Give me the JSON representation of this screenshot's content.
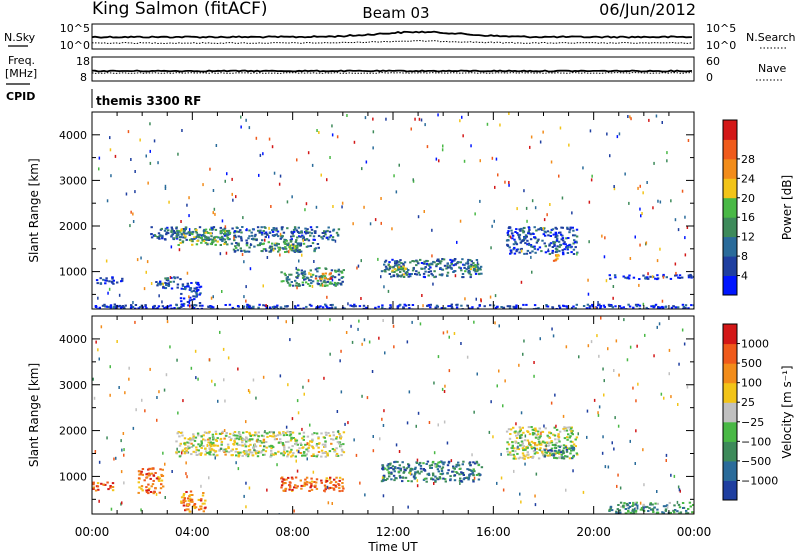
{
  "header": {
    "station": "King Salmon (fitACF)",
    "beam": "Beam 03",
    "date": "06/Jun/2012"
  },
  "top_panels": {
    "nsky_label": "N.Sky",
    "nsearch_label": "N.Search",
    "noise_ticks": [
      "10^5",
      "10^0"
    ],
    "freq_label_line1": "Freq.",
    "freq_label_line2": "[MHz]",
    "freq_ticks": [
      "18",
      "8"
    ],
    "nave_label": "Nave",
    "nave_ticks": [
      "60",
      "0"
    ],
    "cpid_label": "CPID",
    "cpid_value": "themis 3300 RF"
  },
  "chart_data": [
    {
      "type": "heatmap",
      "title": "Power",
      "ylabel": "Slant Range [km]",
      "xlabel": "Time UT",
      "x_ticks": [
        "00:00",
        "04:00",
        "08:00",
        "12:00",
        "16:00",
        "20:00",
        "00:00"
      ],
      "xlim_hours": [
        0,
        24
      ],
      "y_ticks": [
        1000,
        2000,
        3000,
        4000
      ],
      "ylim": [
        180,
        4500
      ],
      "colorbar": {
        "label": "Power [dB]",
        "ticks": [
          "4",
          "8",
          "12",
          "16",
          "20",
          "24",
          "28"
        ],
        "colors": [
          "#0016ff",
          "#1f3fa0",
          "#2a6b9a",
          "#3d8a5a",
          "#49b845",
          "#f2c418",
          "#f28c1a",
          "#ef5a1b",
          "#d31717"
        ]
      },
      "echo_regions": [
        {
          "t0": 2.3,
          "t1": 9.8,
          "r0": 1700,
          "r1": 2000,
          "level": 0.25
        },
        {
          "t0": 3.3,
          "t1": 5.5,
          "r0": 1600,
          "r1": 1950,
          "level": 0.45
        },
        {
          "t0": 7.0,
          "t1": 8.2,
          "r0": 1450,
          "r1": 1700,
          "level": 0.5
        },
        {
          "t0": 5.5,
          "t1": 9.0,
          "r0": 1450,
          "r1": 1650,
          "level": 0.3
        },
        {
          "t0": 7.5,
          "t1": 10.0,
          "r0": 700,
          "r1": 1100,
          "level": 0.35
        },
        {
          "t0": 8.8,
          "t1": 9.5,
          "r0": 850,
          "r1": 1000,
          "level": 0.8
        },
        {
          "t0": 0.0,
          "t1": 1.2,
          "r0": 750,
          "r1": 900,
          "level": 0.1
        },
        {
          "t0": 2.5,
          "t1": 3.5,
          "r0": 650,
          "r1": 900,
          "level": 0.2
        },
        {
          "t0": 3.5,
          "t1": 4.3,
          "r0": 250,
          "r1": 800,
          "level": 0.15
        },
        {
          "t0": 11.5,
          "t1": 15.5,
          "r0": 900,
          "r1": 1300,
          "level": 0.25
        },
        {
          "t0": 11.8,
          "t1": 12.5,
          "r0": 950,
          "r1": 1150,
          "level": 0.5
        },
        {
          "t0": 14.8,
          "t1": 15.5,
          "r0": 1000,
          "r1": 1200,
          "level": 0.45
        },
        {
          "t0": 16.5,
          "t1": 19.3,
          "r0": 1400,
          "r1": 2000,
          "level": 0.2
        },
        {
          "t0": 18.3,
          "t1": 18.7,
          "r0": 1250,
          "r1": 1400,
          "level": 0.75
        },
        {
          "t0": 20.5,
          "t1": 24.0,
          "r0": 850,
          "r1": 950,
          "level": 0.1
        },
        {
          "t0": 0.0,
          "t1": 24.0,
          "r0": 180,
          "r1": 300,
          "level": 0.1
        }
      ]
    },
    {
      "type": "heatmap",
      "title": "Velocity",
      "ylabel": "Slant Range [km]",
      "xlabel": "Time UT",
      "x_ticks": [
        "00:00",
        "04:00",
        "08:00",
        "12:00",
        "16:00",
        "20:00",
        "00:00"
      ],
      "xlim_hours": [
        0,
        24
      ],
      "y_ticks": [
        1000,
        2000,
        3000,
        4000
      ],
      "ylim": [
        180,
        4500
      ],
      "colorbar": {
        "label": "Velocity [m s⁻¹]",
        "ticks": [
          "1000",
          "500",
          "100",
          "25",
          "−25",
          "−100",
          "−500",
          "−1000"
        ],
        "colors": [
          "#1f3fa0",
          "#2a6b9a",
          "#3d8a5a",
          "#49b845",
          "#c0c0c0",
          "#f2c418",
          "#f28c1a",
          "#ef5a1b",
          "#d31717"
        ]
      },
      "echo_regions": [
        {
          "t0": 3.3,
          "t1": 10.0,
          "r0": 1450,
          "r1": 2000,
          "level": 0.5
        },
        {
          "t0": 7.5,
          "t1": 10.0,
          "r0": 700,
          "r1": 1000,
          "level": 0.8
        },
        {
          "t0": 1.8,
          "t1": 2.8,
          "r0": 650,
          "r1": 1200,
          "level": 0.8
        },
        {
          "t0": 3.5,
          "t1": 4.5,
          "r0": 250,
          "r1": 700,
          "level": 0.75
        },
        {
          "t0": 0.0,
          "t1": 0.8,
          "r0": 700,
          "r1": 900,
          "level": 0.8
        },
        {
          "t0": 11.5,
          "t1": 15.5,
          "r0": 900,
          "r1": 1350,
          "level": 0.2
        },
        {
          "t0": 16.5,
          "t1": 19.3,
          "r0": 1400,
          "r1": 2100,
          "level": 0.5
        },
        {
          "t0": 18.0,
          "t1": 19.2,
          "r0": 1400,
          "r1": 1700,
          "level": 0.2
        },
        {
          "t0": 20.5,
          "t1": 24.0,
          "r0": 180,
          "r1": 450,
          "level": 0.3
        }
      ]
    }
  ]
}
